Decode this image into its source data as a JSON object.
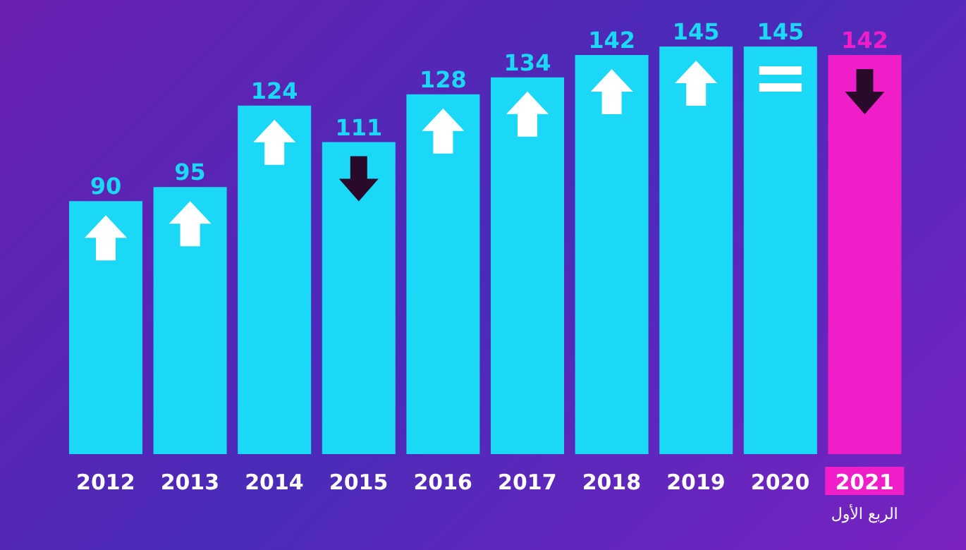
{
  "chart_data": {
    "type": "bar",
    "categories": [
      "2012",
      "2013",
      "2014",
      "2015",
      "2016",
      "2017",
      "2018",
      "2019",
      "2020",
      "2021"
    ],
    "values": [
      90,
      95,
      124,
      111,
      128,
      134,
      142,
      145,
      145,
      142
    ],
    "colors": [
      "#1ad8f6",
      "#1ad8f6",
      "#1ad8f6",
      "#1ad8f6",
      "#1ad8f6",
      "#1ad8f6",
      "#1ad8f6",
      "#1ad8f6",
      "#1ad8f6",
      "#f01ec8"
    ],
    "data_labels": true,
    "annotations": [
      "الربع الأول"
    ]
  }
}
